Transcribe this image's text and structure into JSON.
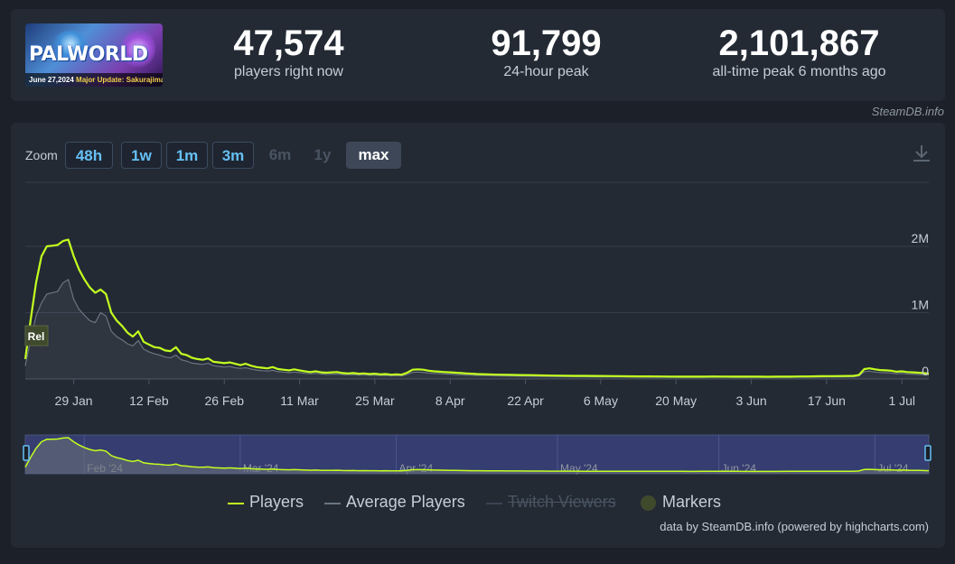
{
  "header": {
    "logo": {
      "title": "PALWORLD",
      "date": "June 27,2024",
      "update": "Major Update: Sakurajima"
    },
    "stats": [
      {
        "value": "47,574",
        "label": "players right now"
      },
      {
        "value": "91,799",
        "label": "24-hour peak"
      },
      {
        "value": "2,101,867",
        "label": "all-time peak 6 months ago"
      }
    ],
    "credit": "SteamDB.info"
  },
  "zoom": {
    "label": "Zoom",
    "buttons": [
      {
        "label": "48h",
        "state": "enabled"
      },
      {
        "label": "1w",
        "state": "enabled"
      },
      {
        "label": "1m",
        "state": "enabled"
      },
      {
        "label": "3m",
        "state": "enabled"
      },
      {
        "label": "6m",
        "state": "disabled"
      },
      {
        "label": "1y",
        "state": "disabled"
      },
      {
        "label": "max",
        "state": "selected"
      }
    ],
    "download_icon": "download-icon"
  },
  "chart_data": {
    "type": "line",
    "y_ticks": [
      "2M",
      "1M",
      "0"
    ],
    "ylim": [
      0,
      2700000
    ],
    "x_ticks": [
      "29 Jan",
      "12 Feb",
      "26 Feb",
      "11 Mar",
      "25 Mar",
      "8 Apr",
      "22 Apr",
      "6 May",
      "20 May",
      "3 Jun",
      "17 Jun",
      "1 Jul"
    ],
    "x_tick_days": [
      9,
      23,
      37,
      51,
      65,
      79,
      93,
      107,
      121,
      135,
      149,
      163
    ],
    "series": [
      {
        "name": "Players",
        "color": "#c3ff1f",
        "points": [
          [
            0,
            300000
          ],
          [
            1,
            900000
          ],
          [
            2,
            1450000
          ],
          [
            3,
            1850000
          ],
          [
            4,
            2000000
          ],
          [
            5,
            2010000
          ],
          [
            6,
            2020000
          ],
          [
            7,
            2080000
          ],
          [
            8,
            2101867
          ],
          [
            9,
            1850000
          ],
          [
            10,
            1650000
          ],
          [
            11,
            1500000
          ],
          [
            12,
            1380000
          ],
          [
            13,
            1300000
          ],
          [
            14,
            1350000
          ],
          [
            15,
            1280000
          ],
          [
            16,
            1000000
          ],
          [
            17,
            880000
          ],
          [
            18,
            800000
          ],
          [
            19,
            700000
          ],
          [
            20,
            640000
          ],
          [
            21,
            720000
          ],
          [
            22,
            560000
          ],
          [
            23,
            520000
          ],
          [
            24,
            480000
          ],
          [
            25,
            470000
          ],
          [
            26,
            430000
          ],
          [
            27,
            420000
          ],
          [
            28,
            480000
          ],
          [
            29,
            380000
          ],
          [
            30,
            360000
          ],
          [
            31,
            320000
          ],
          [
            32,
            300000
          ],
          [
            33,
            290000
          ],
          [
            34,
            310000
          ],
          [
            35,
            260000
          ],
          [
            36,
            250000
          ],
          [
            37,
            240000
          ],
          [
            38,
            250000
          ],
          [
            39,
            230000
          ],
          [
            40,
            210000
          ],
          [
            41,
            230000
          ],
          [
            42,
            200000
          ],
          [
            43,
            180000
          ],
          [
            44,
            170000
          ],
          [
            45,
            160000
          ],
          [
            46,
            180000
          ],
          [
            47,
            150000
          ],
          [
            48,
            140000
          ],
          [
            49,
            130000
          ],
          [
            50,
            145000
          ],
          [
            51,
            130000
          ],
          [
            52,
            115000
          ],
          [
            53,
            105000
          ],
          [
            54,
            115000
          ],
          [
            55,
            100000
          ],
          [
            56,
            95000
          ],
          [
            57,
            100000
          ],
          [
            58,
            105000
          ],
          [
            59,
            90000
          ],
          [
            60,
            85000
          ],
          [
            61,
            90000
          ],
          [
            62,
            80000
          ],
          [
            63,
            85000
          ],
          [
            64,
            75000
          ],
          [
            65,
            80000
          ],
          [
            66,
            70000
          ],
          [
            67,
            75000
          ],
          [
            68,
            65000
          ],
          [
            69,
            70000
          ],
          [
            70,
            65000
          ],
          [
            71,
            95000
          ],
          [
            72,
            140000
          ],
          [
            73,
            145000
          ],
          [
            74,
            140000
          ],
          [
            75,
            125000
          ],
          [
            76,
            115000
          ],
          [
            77,
            110000
          ],
          [
            78,
            105000
          ],
          [
            79,
            100000
          ],
          [
            80,
            95000
          ],
          [
            81,
            90000
          ],
          [
            82,
            85000
          ],
          [
            83,
            80000
          ],
          [
            84,
            75000
          ],
          [
            86,
            70000
          ],
          [
            88,
            65000
          ],
          [
            90,
            62000
          ],
          [
            92,
            60000
          ],
          [
            94,
            58000
          ],
          [
            96,
            55000
          ],
          [
            98,
            52000
          ],
          [
            100,
            50000
          ],
          [
            102,
            48000
          ],
          [
            104,
            47000
          ],
          [
            106,
            46000
          ],
          [
            108,
            45000
          ],
          [
            110,
            43000
          ],
          [
            112,
            41000
          ],
          [
            114,
            40000
          ],
          [
            116,
            39000
          ],
          [
            118,
            38000
          ],
          [
            120,
            37000
          ],
          [
            122,
            36000
          ],
          [
            124,
            35000
          ],
          [
            126,
            36000
          ],
          [
            128,
            38000
          ],
          [
            130,
            37000
          ],
          [
            132,
            36000
          ],
          [
            134,
            35000
          ],
          [
            136,
            35000
          ],
          [
            138,
            34000
          ],
          [
            140,
            35000
          ],
          [
            142,
            36000
          ],
          [
            144,
            38000
          ],
          [
            146,
            40000
          ],
          [
            148,
            42000
          ],
          [
            150,
            44000
          ],
          [
            152,
            45000
          ],
          [
            154,
            47000
          ],
          [
            155,
            60000
          ],
          [
            156,
            150000
          ],
          [
            157,
            160000
          ],
          [
            158,
            145000
          ],
          [
            159,
            135000
          ],
          [
            160,
            130000
          ],
          [
            161,
            125000
          ],
          [
            162,
            110000
          ],
          [
            163,
            115000
          ],
          [
            164,
            105000
          ],
          [
            165,
            100000
          ],
          [
            166,
            95000
          ],
          [
            167,
            90000
          ],
          [
            168,
            80000
          ]
        ]
      },
      {
        "name": "Average Players",
        "color": "#6b7480",
        "points": [
          [
            0,
            200000
          ],
          [
            1,
            600000
          ],
          [
            2,
            950000
          ],
          [
            3,
            1150000
          ],
          [
            4,
            1280000
          ],
          [
            5,
            1300000
          ],
          [
            6,
            1320000
          ],
          [
            7,
            1450000
          ],
          [
            8,
            1500000
          ],
          [
            9,
            1200000
          ],
          [
            10,
            1050000
          ],
          [
            11,
            960000
          ],
          [
            12,
            880000
          ],
          [
            13,
            850000
          ],
          [
            14,
            1000000
          ],
          [
            15,
            950000
          ],
          [
            16,
            720000
          ],
          [
            17,
            640000
          ],
          [
            18,
            590000
          ],
          [
            19,
            530000
          ],
          [
            20,
            500000
          ],
          [
            21,
            580000
          ],
          [
            22,
            450000
          ],
          [
            23,
            410000
          ],
          [
            24,
            380000
          ],
          [
            25,
            360000
          ],
          [
            26,
            330000
          ],
          [
            27,
            320000
          ],
          [
            28,
            360000
          ],
          [
            29,
            290000
          ],
          [
            30,
            270000
          ],
          [
            31,
            240000
          ],
          [
            32,
            230000
          ],
          [
            33,
            220000
          ],
          [
            34,
            240000
          ],
          [
            35,
            200000
          ],
          [
            36,
            190000
          ],
          [
            37,
            180000
          ],
          [
            38,
            190000
          ],
          [
            39,
            170000
          ],
          [
            40,
            160000
          ],
          [
            41,
            170000
          ],
          [
            42,
            150000
          ],
          [
            43,
            135000
          ],
          [
            44,
            125000
          ],
          [
            45,
            120000
          ],
          [
            46,
            130000
          ],
          [
            47,
            110000
          ],
          [
            48,
            105000
          ],
          [
            49,
            95000
          ],
          [
            50,
            105000
          ],
          [
            51,
            95000
          ],
          [
            52,
            85000
          ],
          [
            53,
            80000
          ],
          [
            54,
            85000
          ],
          [
            55,
            75000
          ],
          [
            56,
            70000
          ],
          [
            57,
            72000
          ],
          [
            58,
            75000
          ],
          [
            59,
            68000
          ],
          [
            60,
            64000
          ],
          [
            61,
            66000
          ],
          [
            62,
            60000
          ],
          [
            63,
            62000
          ],
          [
            64,
            56000
          ],
          [
            65,
            58000
          ],
          [
            66,
            52000
          ],
          [
            67,
            55000
          ],
          [
            68,
            48000
          ],
          [
            69,
            52000
          ],
          [
            70,
            48000
          ],
          [
            71,
            70000
          ],
          [
            72,
            100000
          ],
          [
            73,
            105000
          ],
          [
            74,
            100000
          ],
          [
            75,
            90000
          ],
          [
            76,
            85000
          ],
          [
            77,
            80000
          ],
          [
            78,
            76000
          ],
          [
            79,
            72000
          ],
          [
            80,
            68000
          ],
          [
            81,
            64000
          ],
          [
            82,
            60000
          ],
          [
            83,
            57000
          ],
          [
            84,
            54000
          ],
          [
            86,
            50000
          ],
          [
            88,
            47000
          ],
          [
            90,
            45000
          ],
          [
            92,
            43000
          ],
          [
            94,
            41000
          ],
          [
            96,
            39000
          ],
          [
            98,
            37000
          ],
          [
            100,
            36000
          ],
          [
            102,
            35000
          ],
          [
            104,
            34000
          ],
          [
            106,
            33000
          ],
          [
            108,
            32000
          ],
          [
            110,
            31000
          ],
          [
            112,
            30000
          ],
          [
            114,
            29000
          ],
          [
            116,
            28000
          ],
          [
            118,
            27000
          ],
          [
            120,
            26000
          ],
          [
            122,
            26000
          ],
          [
            124,
            25000
          ],
          [
            126,
            26000
          ],
          [
            128,
            27000
          ],
          [
            130,
            27000
          ],
          [
            132,
            26000
          ],
          [
            134,
            25000
          ],
          [
            136,
            25000
          ],
          [
            138,
            24000
          ],
          [
            140,
            25000
          ],
          [
            142,
            26000
          ],
          [
            144,
            27000
          ],
          [
            146,
            29000
          ],
          [
            148,
            30000
          ],
          [
            150,
            32000
          ],
          [
            152,
            33000
          ],
          [
            154,
            34000
          ],
          [
            155,
            45000
          ],
          [
            156,
            110000
          ],
          [
            157,
            118000
          ],
          [
            158,
            105000
          ],
          [
            159,
            98000
          ],
          [
            160,
            94000
          ],
          [
            161,
            90000
          ],
          [
            162,
            80000
          ],
          [
            163,
            84000
          ],
          [
            164,
            76000
          ],
          [
            165,
            72000
          ],
          [
            166,
            68000
          ],
          [
            167,
            65000
          ],
          [
            168,
            58000
          ]
        ]
      }
    ],
    "markers": [
      {
        "label": "Rel"
      }
    ],
    "navigator": {
      "labels": [
        "Feb '24",
        "Mar '24",
        "Apr '24",
        "May '24",
        "Jun '24",
        "Jul '24"
      ]
    },
    "legend": [
      {
        "name": "Players",
        "color": "#c3ff1f",
        "kind": "line",
        "hidden": false
      },
      {
        "name": "Average Players",
        "color": "#6b7480",
        "kind": "line",
        "hidden": false
      },
      {
        "name": "Twitch Viewers",
        "color": "#4a5462",
        "kind": "line",
        "hidden": true
      },
      {
        "name": "Markers",
        "color": "#3f4a2c",
        "kind": "dot",
        "hidden": false
      }
    ],
    "grid": true,
    "legend_position": "bottom"
  },
  "footer": {
    "credit": "data by SteamDB.info (powered by highcharts.com)"
  }
}
